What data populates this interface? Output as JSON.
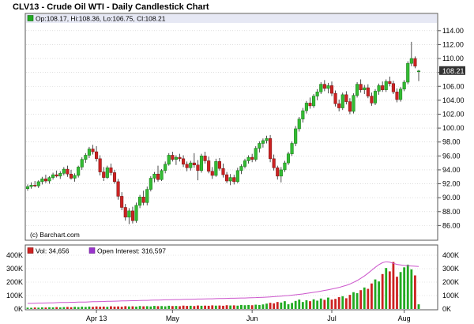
{
  "chart_data": {
    "title": "CLV13 - Crude Oil WTI - Daily Candlestick Chart",
    "type": "candlestick",
    "ohlc_label": "Op:108.17, Hi:108.36, Lo:106.75, Cl:108.21",
    "last_price_label": "108.21",
    "copyright": "(c) Barchart.com",
    "price_axis": {
      "ylim": [
        84,
        115
      ],
      "ticks": [
        "86.00",
        "88.00",
        "90.00",
        "92.00",
        "94.00",
        "96.00",
        "98.00",
        "100.00",
        "102.00",
        "104.00",
        "106.00",
        "108.00",
        "110.00",
        "112.00",
        "114.00"
      ]
    },
    "x_tick_labels": [
      "Apr 13",
      "May",
      "Jun",
      "Jul",
      "Aug"
    ],
    "candles": [
      [
        91.3,
        91.9,
        91.0,
        91.6
      ],
      [
        91.6,
        92.2,
        91.3,
        91.8
      ],
      [
        91.8,
        92.4,
        91.5,
        91.7
      ],
      [
        91.7,
        92.5,
        91.4,
        92.3
      ],
      [
        92.3,
        93.0,
        91.9,
        92.7
      ],
      [
        92.7,
        93.3,
        92.1,
        92.4
      ],
      [
        92.4,
        93.1,
        92.0,
        92.9
      ],
      [
        92.9,
        93.6,
        92.6,
        93.3
      ],
      [
        93.3,
        93.9,
        92.9,
        93.1
      ],
      [
        93.1,
        93.8,
        92.7,
        93.5
      ],
      [
        93.5,
        94.4,
        93.2,
        94.1
      ],
      [
        94.1,
        94.6,
        93.0,
        93.4
      ],
      [
        93.4,
        94.0,
        92.6,
        92.8
      ],
      [
        92.8,
        93.5,
        92.3,
        93.2
      ],
      [
        93.2,
        94.6,
        92.9,
        94.4
      ],
      [
        94.4,
        95.8,
        94.0,
        95.5
      ],
      [
        95.5,
        96.4,
        95.0,
        96.1
      ],
      [
        96.1,
        97.3,
        95.7,
        97.0
      ],
      [
        97.0,
        97.6,
        96.2,
        96.6
      ],
      [
        96.6,
        97.4,
        95.2,
        95.6
      ],
      [
        95.6,
        96.1,
        93.2,
        93.7
      ],
      [
        93.7,
        94.4,
        92.4,
        92.9
      ],
      [
        92.9,
        94.6,
        92.7,
        94.3
      ],
      [
        94.3,
        94.9,
        93.2,
        93.6
      ],
      [
        93.6,
        94.0,
        92.0,
        92.3
      ],
      [
        92.3,
        92.7,
        89.7,
        90.2
      ],
      [
        90.2,
        90.8,
        88.2,
        88.6
      ],
      [
        88.6,
        89.1,
        86.7,
        87.2
      ],
      [
        87.2,
        88.5,
        86.2,
        88.1
      ],
      [
        88.1,
        88.7,
        86.3,
        86.7
      ],
      [
        86.7,
        89.3,
        86.4,
        88.9
      ],
      [
        88.9,
        90.4,
        88.5,
        90.1
      ],
      [
        90.1,
        91.0,
        88.9,
        89.3
      ],
      [
        89.3,
        91.6,
        88.9,
        91.2
      ],
      [
        91.2,
        93.1,
        90.9,
        92.8
      ],
      [
        92.8,
        93.7,
        92.2,
        93.4
      ],
      [
        93.4,
        94.6,
        92.3,
        92.6
      ],
      [
        92.6,
        94.1,
        92.4,
        93.9
      ],
      [
        93.9,
        95.2,
        93.5,
        94.8
      ],
      [
        94.8,
        96.4,
        94.6,
        96.1
      ],
      [
        96.1,
        96.6,
        95.2,
        95.5
      ],
      [
        95.5,
        96.1,
        94.7,
        95.8
      ],
      [
        95.8,
        96.3,
        95.2,
        95.6
      ],
      [
        95.6,
        96.1,
        94.4,
        94.8
      ],
      [
        94.8,
        95.2,
        93.8,
        94.3
      ],
      [
        94.3,
        95.3,
        93.9,
        95.0
      ],
      [
        95.0,
        96.4,
        94.3,
        94.7
      ],
      [
        94.7,
        95.4,
        92.5,
        93.9
      ],
      [
        93.9,
        96.3,
        93.6,
        96.0
      ],
      [
        96.0,
        96.6,
        94.9,
        95.3
      ],
      [
        95.3,
        95.9,
        93.5,
        93.8
      ],
      [
        93.8,
        94.4,
        92.7,
        93.2
      ],
      [
        93.2,
        95.6,
        93.0,
        95.2
      ],
      [
        95.2,
        95.7,
        93.9,
        94.2
      ],
      [
        94.2,
        94.9,
        92.9,
        93.3
      ],
      [
        93.3,
        93.7,
        92.1,
        92.4
      ],
      [
        92.4,
        93.4,
        91.8,
        92.9
      ],
      [
        92.9,
        93.3,
        91.9,
        92.3
      ],
      [
        92.3,
        94.3,
        92.1,
        93.9
      ],
      [
        93.9,
        94.8,
        93.4,
        94.5
      ],
      [
        94.5,
        95.6,
        94.2,
        95.3
      ],
      [
        95.3,
        96.1,
        94.9,
        95.8
      ],
      [
        95.8,
        96.3,
        95.1,
        95.5
      ],
      [
        95.5,
        97.4,
        95.2,
        97.1
      ],
      [
        97.1,
        98.1,
        96.5,
        97.8
      ],
      [
        97.8,
        98.5,
        97.2,
        98.2
      ],
      [
        98.2,
        98.9,
        97.8,
        98.5
      ],
      [
        98.5,
        99.0,
        95.1,
        95.6
      ],
      [
        95.6,
        96.2,
        93.9,
        94.3
      ],
      [
        94.3,
        94.6,
        92.6,
        93.1
      ],
      [
        93.1,
        94.4,
        92.2,
        94.0
      ],
      [
        94.0,
        95.3,
        93.7,
        95.0
      ],
      [
        95.0,
        96.6,
        94.7,
        96.3
      ],
      [
        96.3,
        98.1,
        96.0,
        97.8
      ],
      [
        97.8,
        100.3,
        97.4,
        99.9
      ],
      [
        99.9,
        101.6,
        99.5,
        101.3
      ],
      [
        101.3,
        102.9,
        100.8,
        102.5
      ],
      [
        102.5,
        103.9,
        102.1,
        103.6
      ],
      [
        103.6,
        104.4,
        102.8,
        103.2
      ],
      [
        103.2,
        104.9,
        102.9,
        104.6
      ],
      [
        104.6,
        105.6,
        104.0,
        105.2
      ],
      [
        105.2,
        106.6,
        104.9,
        106.3
      ],
      [
        106.3,
        106.9,
        105.3,
        105.7
      ],
      [
        105.7,
        106.5,
        105.0,
        106.1
      ],
      [
        106.1,
        106.7,
        104.6,
        105.0
      ],
      [
        105.0,
        105.4,
        103.1,
        103.5
      ],
      [
        103.5,
        104.1,
        102.4,
        102.9
      ],
      [
        102.9,
        105.1,
        102.6,
        104.8
      ],
      [
        104.8,
        105.3,
        103.4,
        103.8
      ],
      [
        103.8,
        104.3,
        102.0,
        102.4
      ],
      [
        102.4,
        105.0,
        102.1,
        104.7
      ],
      [
        104.7,
        106.6,
        104.4,
        106.3
      ],
      [
        106.3,
        107.0,
        105.1,
        105.5
      ],
      [
        105.5,
        106.2,
        104.9,
        105.8
      ],
      [
        105.8,
        106.3,
        104.3,
        104.6
      ],
      [
        104.6,
        105.1,
        103.2,
        103.6
      ],
      [
        103.6,
        105.6,
        103.3,
        105.3
      ],
      [
        105.3,
        106.4,
        104.8,
        106.1
      ],
      [
        106.1,
        106.7,
        105.2,
        105.5
      ],
      [
        105.5,
        107.0,
        105.2,
        106.7
      ],
      [
        106.7,
        107.4,
        106.0,
        106.4
      ],
      [
        106.4,
        106.8,
        104.9,
        105.2
      ],
      [
        105.2,
        105.7,
        103.7,
        104.1
      ],
      [
        104.1,
        105.9,
        103.8,
        105.6
      ],
      [
        105.6,
        106.9,
        105.3,
        106.6
      ],
      [
        106.6,
        109.6,
        106.3,
        109.3
      ],
      [
        109.3,
        112.4,
        108.9,
        110.0
      ],
      [
        110.0,
        110.3,
        108.6,
        108.9
      ],
      [
        108.17,
        108.36,
        106.75,
        108.21
      ]
    ],
    "volume_panel": {
      "vol_label": "Vol: 34,656",
      "oi_label": "Open Interest: 316,597",
      "ylim": [
        0,
        400000
      ],
      "ticks": [
        "0K",
        "100K",
        "200K",
        "300K",
        "400K"
      ],
      "volume": [
        10000,
        9000,
        11000,
        10000,
        12000,
        11000,
        13000,
        12000,
        14000,
        12000,
        14000,
        15000,
        13000,
        16000,
        14000,
        17000,
        15000,
        18000,
        16000,
        19000,
        17000,
        18000,
        16000,
        20000,
        18000,
        19000,
        17000,
        21000,
        19000,
        20000,
        18000,
        22000,
        20000,
        21000,
        19000,
        23000,
        21000,
        22000,
        20000,
        24000,
        22000,
        23000,
        21000,
        25000,
        23000,
        24000,
        22000,
        26000,
        24000,
        25000,
        24000,
        27000,
        25000,
        26000,
        24000,
        28000,
        26000,
        27000,
        25000,
        30000,
        28000,
        30000,
        28000,
        32000,
        30000,
        34000,
        40000,
        46000,
        42000,
        52000,
        48000,
        58000,
        35000,
        45000,
        60000,
        70000,
        52000,
        65000,
        58000,
        72000,
        62000,
        78000,
        68000,
        85000,
        70000,
        75000,
        88000,
        95000,
        80000,
        105000,
        125000,
        118000,
        140000,
        160000,
        150000,
        190000,
        220000,
        205000,
        260000,
        305000,
        280000,
        350000,
        240000,
        275000,
        310000,
        330000,
        295000,
        250000,
        34656
      ],
      "open_interest": [
        42000,
        42000,
        43000,
        44000,
        44000,
        45000,
        46000,
        46000,
        47000,
        48000,
        48000,
        49000,
        50000,
        50000,
        51000,
        52000,
        52000,
        53000,
        54000,
        54000,
        55000,
        56000,
        57000,
        57000,
        58000,
        59000,
        60000,
        60000,
        61000,
        62000,
        62000,
        63000,
        64000,
        64000,
        65000,
        66000,
        66000,
        67000,
        68000,
        68000,
        69000,
        70000,
        70000,
        71000,
        72000,
        72000,
        73000,
        74000,
        74000,
        75000,
        76000,
        76000,
        77000,
        78000,
        78000,
        79000,
        80000,
        80000,
        81000,
        82000,
        82000,
        83000,
        84000,
        85000,
        86000,
        87000,
        88000,
        90000,
        92000,
        94000,
        96000,
        98000,
        100000,
        103000,
        106000,
        109000,
        112000,
        116000,
        120000,
        124000,
        128000,
        133000,
        138000,
        143000,
        148000,
        154000,
        160000,
        168000,
        176000,
        186000,
        198000,
        212000,
        228000,
        246000,
        266000,
        288000,
        310000,
        330000,
        345000,
        352000,
        348000,
        340000,
        332000,
        328000,
        324000,
        322000,
        320000,
        318000,
        316597
      ]
    }
  }
}
